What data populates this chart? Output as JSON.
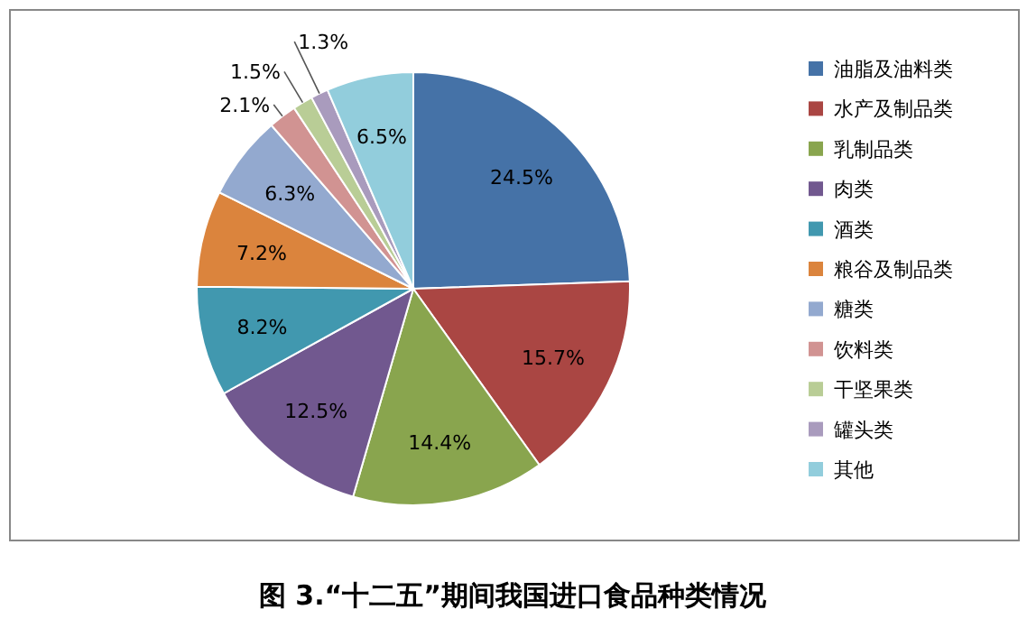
{
  "chart_data": {
    "type": "pie",
    "title": "图 3.“十二五”期间我国进口食品种类情况",
    "categories": [
      "油脂及油料类",
      "水产及制品类",
      "乳制品类",
      "肉类",
      "酒类",
      "粮谷及制品类",
      "糖类",
      "饮料类",
      "干坚果类",
      "罐头类",
      "其他"
    ],
    "values": [
      24.5,
      15.7,
      14.4,
      12.5,
      8.2,
      7.2,
      6.3,
      2.1,
      1.5,
      1.3,
      6.5
    ],
    "value_labels": [
      "24.5%",
      "15.7%",
      "14.4%",
      "12.5%",
      "8.2%",
      "7.2%",
      "6.3%",
      "2.1%",
      "1.5%",
      "1.3%",
      "6.5%"
    ],
    "colors": [
      "#4572a7",
      "#aa4643",
      "#89a54e",
      "#71588f",
      "#4198af",
      "#db843d",
      "#93a9cf",
      "#d19392",
      "#b9cd96",
      "#a99bbd",
      "#92cddc"
    ],
    "legend": "right"
  }
}
